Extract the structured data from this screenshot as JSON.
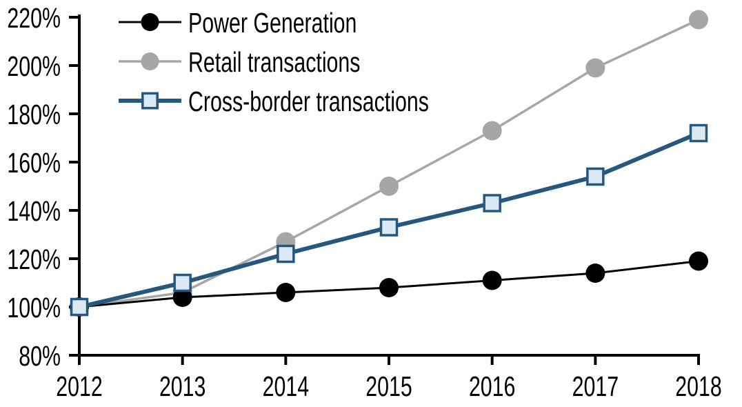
{
  "chart_data": {
    "type": "line",
    "title": "",
    "xlabel": "",
    "ylabel": "",
    "x": [
      2012,
      2013,
      2014,
      2015,
      2016,
      2017,
      2018
    ],
    "x_tick_labels": [
      "2012",
      "2013",
      "2014",
      "2015",
      "2016",
      "2017",
      "2018"
    ],
    "ylim": [
      80,
      220
    ],
    "y_tick_values": [
      80,
      100,
      120,
      140,
      160,
      180,
      200,
      220
    ],
    "y_tick_labels": [
      "80%",
      "100%",
      "120%",
      "140%",
      "160%",
      "180%",
      "200%",
      "220%"
    ],
    "grid": false,
    "legend_position": "top-left",
    "axis_color": "#000000",
    "series": [
      {
        "name": "Power Generation",
        "values": [
          100,
          104,
          106,
          108,
          111,
          114,
          119
        ],
        "color": "#000000",
        "line_width": 3,
        "marker": "circle",
        "marker_size": 28,
        "marker_fill": "#000000",
        "marker_stroke": "#000000",
        "z": 2
      },
      {
        "name": "Retail transactions",
        "values": [
          100,
          106,
          127,
          150,
          173,
          199,
          219
        ],
        "color": "#a6a6a6",
        "line_width": 3.5,
        "marker": "circle",
        "marker_size": 28,
        "marker_fill": "#a6a6a6",
        "marker_stroke": "#a6a6a6",
        "z": 1
      },
      {
        "name": "Cross-border transactions",
        "values": [
          100,
          110,
          122,
          133,
          143,
          154,
          172
        ],
        "color": "#24587e",
        "line_width": 6,
        "marker": "square",
        "marker_size": 23,
        "marker_fill": "#dce9f5",
        "marker_stroke": "#24587e",
        "z": 3
      }
    ]
  }
}
